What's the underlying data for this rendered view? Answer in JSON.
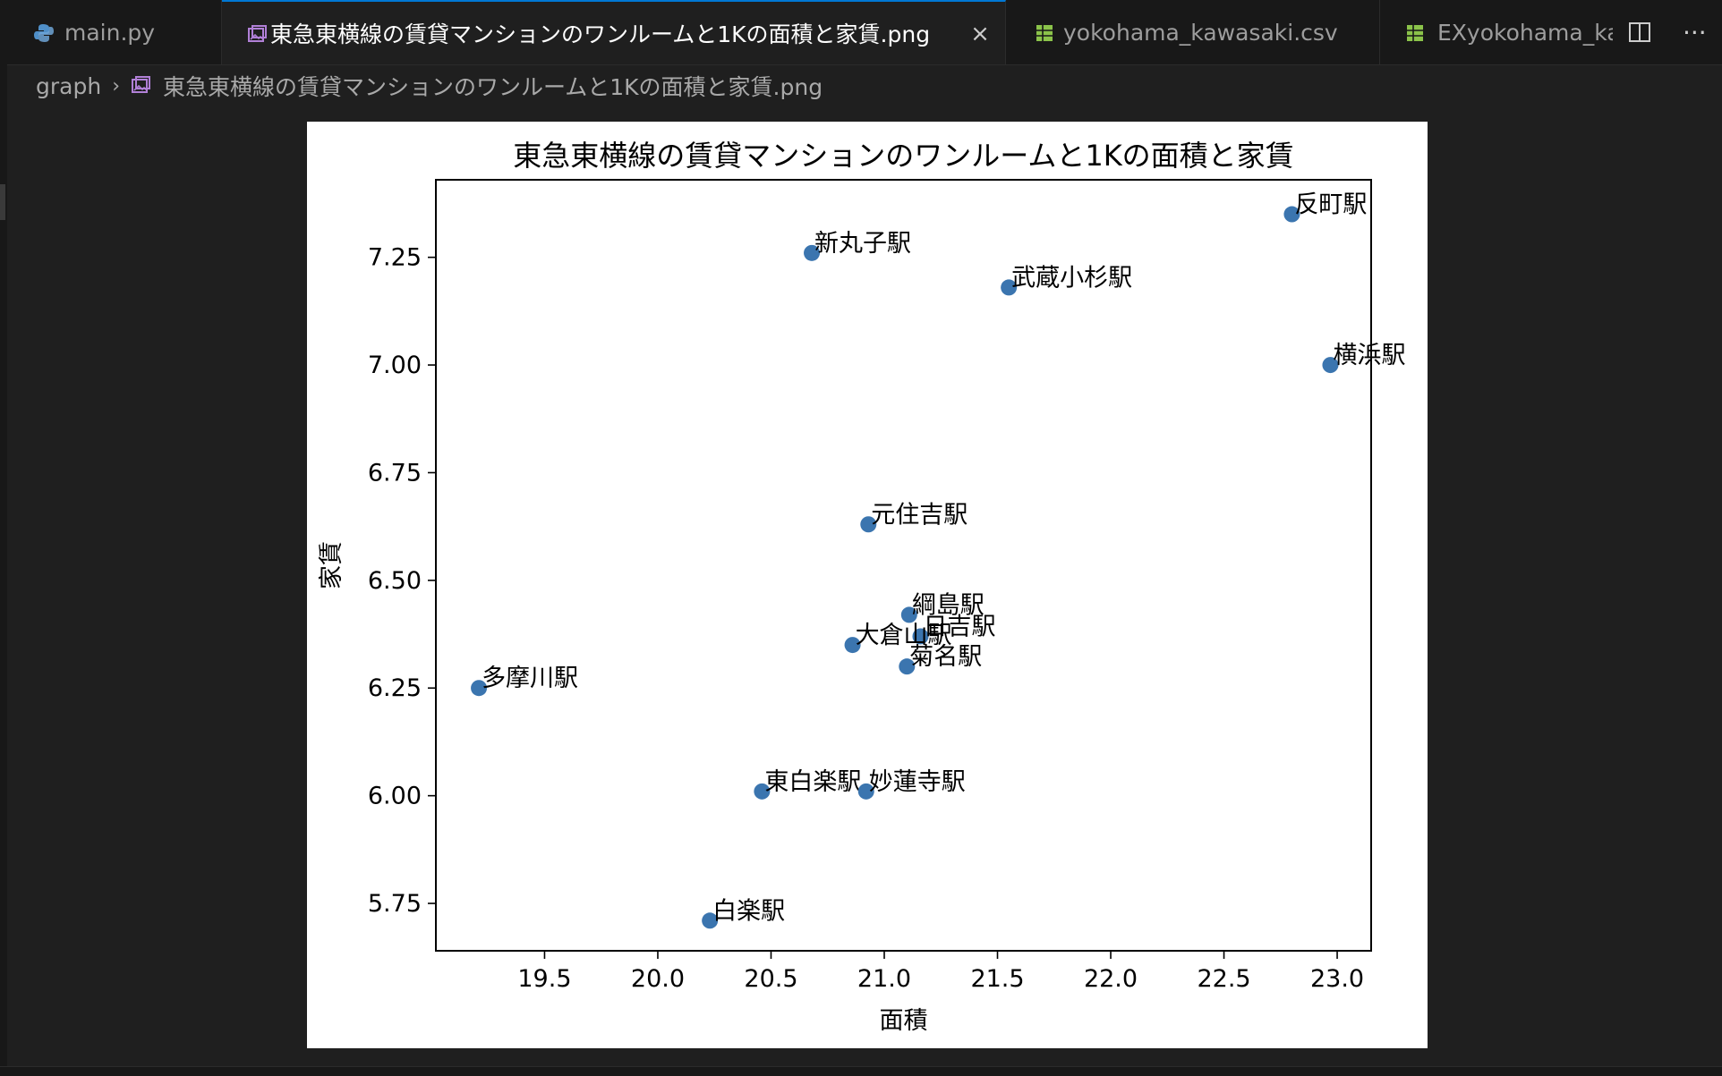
{
  "tabs": [
    {
      "label": "main.py",
      "icon": "python-icon"
    },
    {
      "label": "東急東横線の賃貸マンションのワンルームと1Kの面積と家賃.png",
      "icon": "image-icon",
      "close": "×"
    },
    {
      "label": "yokohama_kawasaki.csv",
      "icon": "table-icon"
    },
    {
      "label": "EXyokohama_ka",
      "icon": "table-icon"
    }
  ],
  "actions": {
    "split": "split-editor-icon",
    "more": "···"
  },
  "breadcrumb": {
    "folder": "graph",
    "file": "東急東横線の賃貸マンションのワンルームと1Kの面積と家賃.png"
  },
  "colors": {
    "accent": "#0078d4",
    "point": "#3b75af",
    "background": "#1f1f1f"
  },
  "chart_data": {
    "type": "scatter",
    "title": "東急東横線の賃貸マンションのワンルームと1Kの面積と家賃",
    "xlabel": "面積",
    "ylabel": "家賃",
    "xlim": [
      19.02,
      23.15
    ],
    "ylim": [
      5.64,
      7.43
    ],
    "xticks": [
      "19.5",
      "20.0",
      "20.5",
      "21.0",
      "21.5",
      "22.0",
      "22.5",
      "23.0"
    ],
    "yticks": [
      "5.75",
      "6.00",
      "6.25",
      "6.50",
      "6.75",
      "7.00",
      "7.25"
    ],
    "points": [
      {
        "label": "反町駅",
        "x": 22.8,
        "y": 7.35
      },
      {
        "label": "新丸子駅",
        "x": 20.68,
        "y": 7.26
      },
      {
        "label": "武蔵小杉駅",
        "x": 21.55,
        "y": 7.18
      },
      {
        "label": "横浜駅",
        "x": 22.97,
        "y": 7.0
      },
      {
        "label": "元住吉駅",
        "x": 20.93,
        "y": 6.63
      },
      {
        "label": "綱島駅",
        "x": 21.11,
        "y": 6.42
      },
      {
        "label": "日吉駅",
        "x": 21.16,
        "y": 6.37
      },
      {
        "label": "大倉山駅",
        "x": 20.86,
        "y": 6.35
      },
      {
        "label": "菊名駅",
        "x": 21.1,
        "y": 6.3
      },
      {
        "label": "多摩川駅",
        "x": 19.21,
        "y": 6.25
      },
      {
        "label": "東白楽駅",
        "x": 20.46,
        "y": 6.01
      },
      {
        "label": "妙蓮寺駅",
        "x": 20.92,
        "y": 6.01
      },
      {
        "label": "白楽駅",
        "x": 20.23,
        "y": 5.71
      }
    ]
  }
}
